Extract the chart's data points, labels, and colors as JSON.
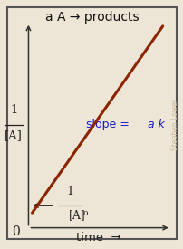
{
  "bg_color": "#ede5d5",
  "border_color": "#555555",
  "line_color": "#8b2500",
  "title": "a A → products",
  "title_fontsize": 10,
  "title_color": "#111111",
  "ylabel_num": "1",
  "ylabel_den": "[A]",
  "slope_text_regular": "slope = ",
  "slope_text_italic": "a k",
  "slope_color": "#1a1acc",
  "intercept_num": "1",
  "intercept_den": "[A]",
  "intercept_sub": "o",
  "zero_label": "0",
  "xlabel": "time",
  "watermark": "Stephen Lower",
  "watermark_color": "#c8bb99",
  "line_width": 2.2
}
